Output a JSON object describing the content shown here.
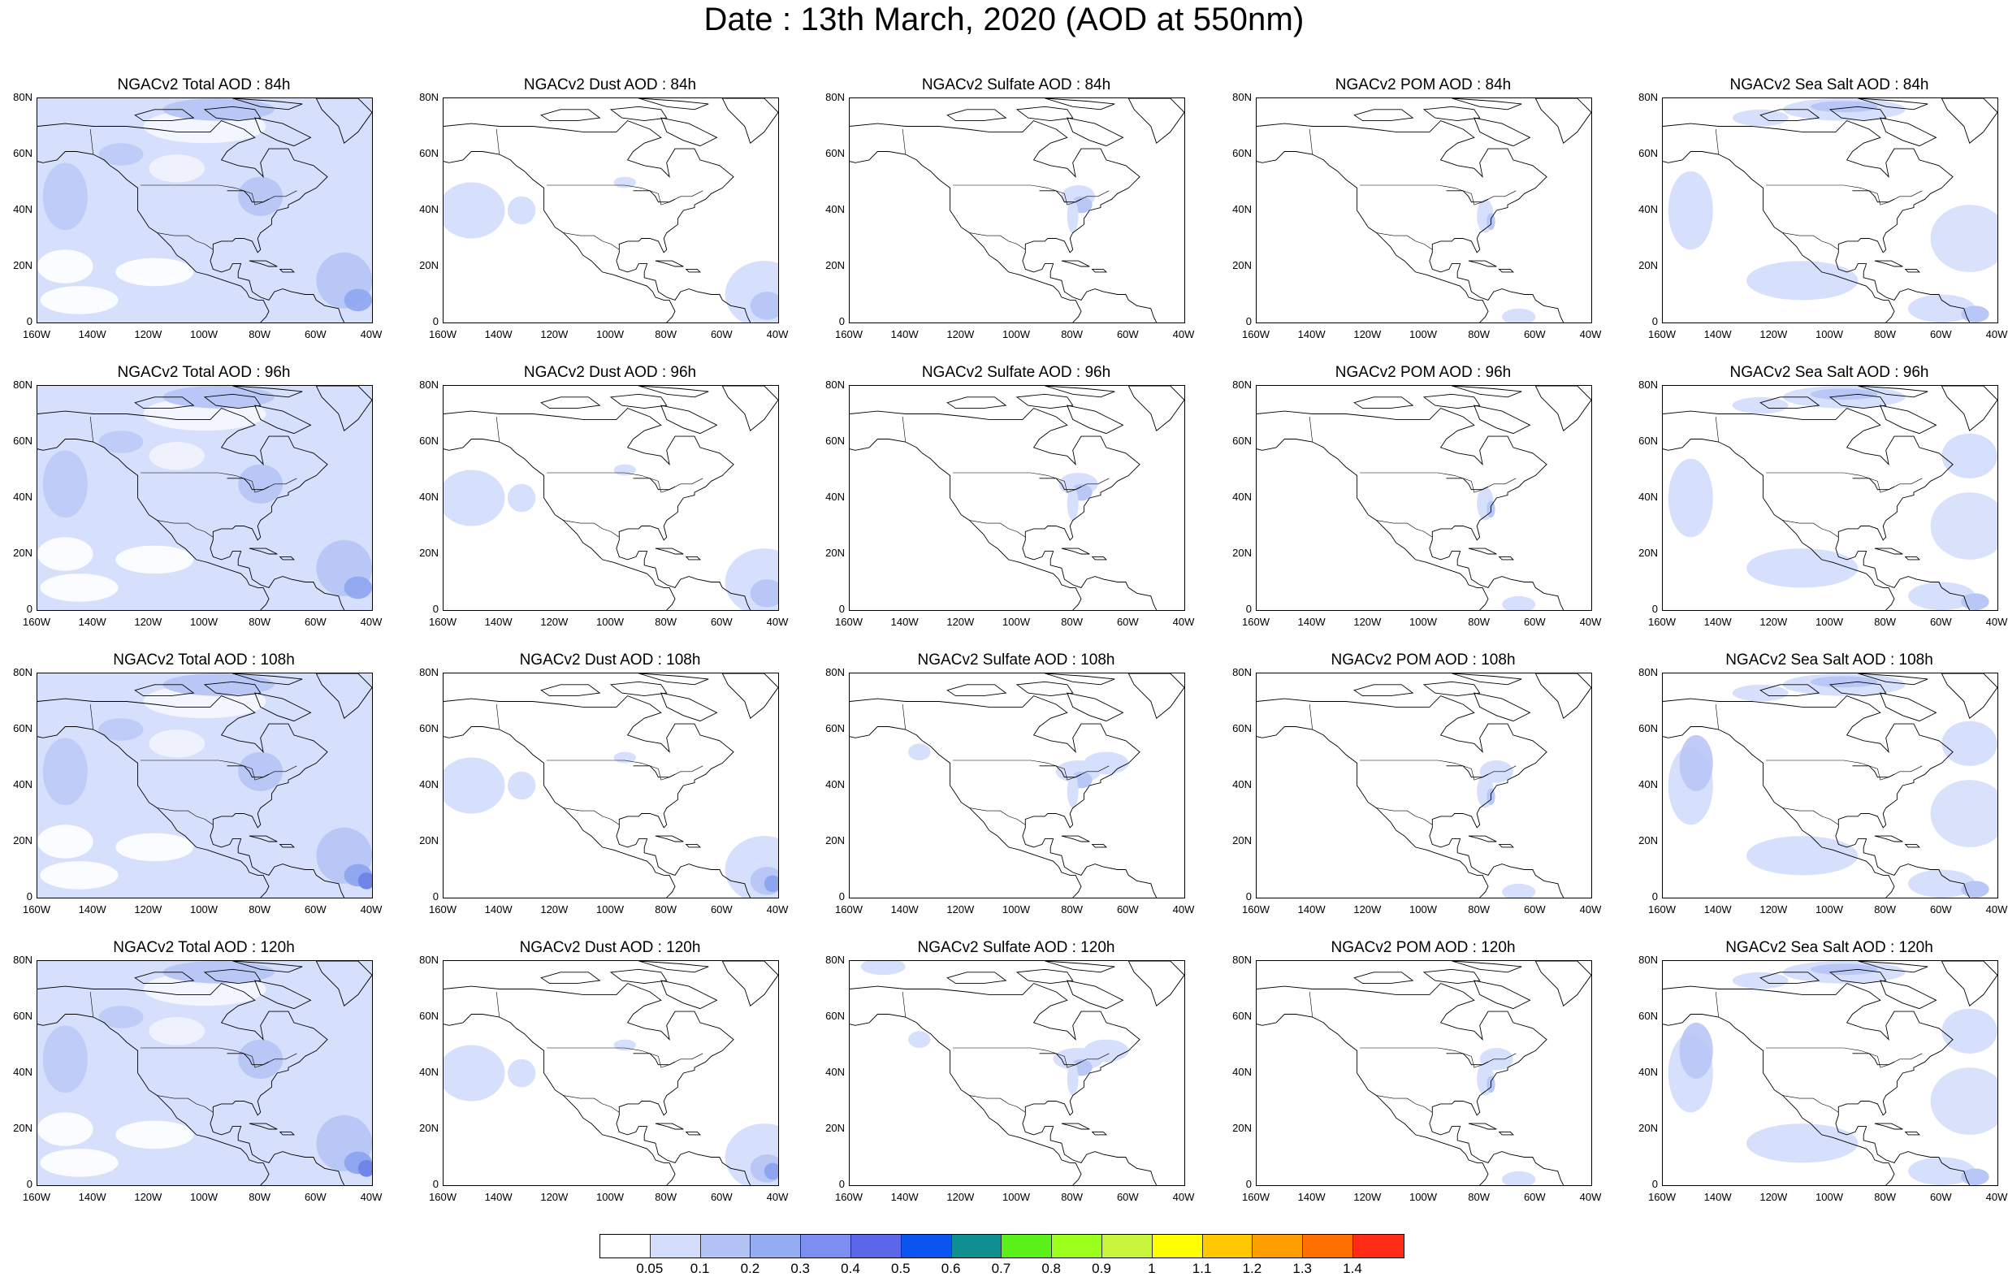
{
  "title": "Date : 13th March, 2020 (AOD at 550nm)",
  "row_hours": [
    "84h",
    "96h",
    "108h",
    "120h"
  ],
  "columns": [
    {
      "key": "total",
      "titles": [
        "NGACv2 Total AOD : 84h",
        "NGACv2 Total AOD : 96h",
        "NGACv2 Total AOD : 108h",
        "NGACv2 Total AOD : 120h"
      ]
    },
    {
      "key": "dust",
      "titles": [
        "NGACv2 Dust AOD : 84h",
        "NGACv2 Dust AOD : 96h",
        "NGACv2 Dust AOD : 108h",
        "NGACv2 Dust AOD : 120h"
      ]
    },
    {
      "key": "sulfate",
      "titles": [
        "NGACv2 Sulfate AOD : 84h",
        "NGACv2 Sulfate AOD : 96h",
        "NGACv2 Sulfate AOD : 108h",
        "NGACv2 Sulfate AOD : 120h"
      ]
    },
    {
      "key": "pom",
      "titles": [
        "NGACv2 POM AOD : 84h",
        "NGACv2 POM AOD : 96h",
        "NGACv2 POM AOD : 108h",
        "NGACv2 POM AOD : 120h"
      ]
    },
    {
      "key": "seasalt",
      "titles": [
        "NGACv2 Sea Salt AOD : 84h",
        "NGACv2 Sea Salt AOD : 96h",
        "NGACv2 Sea Salt  AOD : 108h",
        "NGACv2 Sea Salt  AOD : 120h"
      ]
    }
  ],
  "lat_ticks": [
    "80N",
    "60N",
    "40N",
    "20N",
    "0"
  ],
  "lon_ticks": [
    "160W",
    "140W",
    "120W",
    "100W",
    "80W",
    "60W",
    "40W"
  ],
  "colorbar": {
    "colors": [
      "#ffffff",
      "#d3dcfa",
      "#b3c3f5",
      "#95adf2",
      "#7c8ef0",
      "#5b66e8",
      "#0a55f0",
      "#0e9090",
      "#5af01a",
      "#9aff1a",
      "#c8f53c",
      "#ffff00",
      "#ffc800",
      "#ff9e00",
      "#ff7000",
      "#ff2b14"
    ],
    "labels": [
      "0.05",
      "0.1",
      "0.2",
      "0.3",
      "0.4",
      "0.5",
      "0.6",
      "0.7",
      "0.8",
      "0.9",
      "1",
      "1.1",
      "1.2",
      "1.3",
      "1.4"
    ]
  },
  "field_colors": {
    "light": "#d6dffb",
    "mid": "#b9c7f6",
    "strong": "#8ea6f0",
    "deep": "#6f85ea",
    "coast": "#000000"
  }
}
